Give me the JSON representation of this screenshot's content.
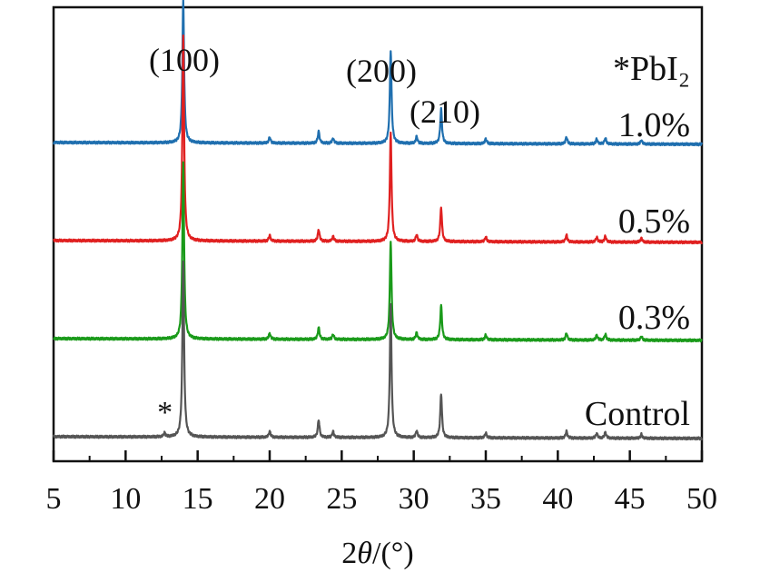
{
  "chart_data": {
    "type": "line",
    "xlabel": "2θ/(°)",
    "xlim": [
      5,
      50
    ],
    "x_ticks": [
      "5",
      "10",
      "15",
      "20",
      "25",
      "30",
      "35",
      "40",
      "45",
      "50"
    ],
    "y_ticks_labeled": false,
    "grid": false,
    "legend_title": "*PbI₂",
    "peak_annotations": [
      {
        "text": "(100)",
        "x": 14.0
      },
      {
        "text": "(200)",
        "x": 28.4
      },
      {
        "text": "(210)",
        "x": 31.9
      }
    ],
    "pbi2_marker": {
      "text": "*",
      "x": 12.7
    },
    "series": [
      {
        "name": "1.0%",
        "color": "#1f6faf",
        "baseline": 3.0,
        "peaks": [
          {
            "x": 14.0,
            "y": 1.45
          },
          {
            "x": 20.0,
            "y": 0.06
          },
          {
            "x": 23.4,
            "y": 0.12
          },
          {
            "x": 24.4,
            "y": 0.05
          },
          {
            "x": 28.4,
            "y": 0.95
          },
          {
            "x": 30.2,
            "y": 0.07
          },
          {
            "x": 31.9,
            "y": 0.35
          },
          {
            "x": 35.0,
            "y": 0.05
          },
          {
            "x": 40.6,
            "y": 0.07
          },
          {
            "x": 42.7,
            "y": 0.05
          },
          {
            "x": 43.3,
            "y": 0.06
          },
          {
            "x": 45.8,
            "y": 0.04
          }
        ]
      },
      {
        "name": "0.5%",
        "color": "#e02020",
        "baseline": 2.0,
        "peaks": [
          {
            "x": 14.0,
            "y": 2.1
          },
          {
            "x": 20.0,
            "y": 0.06
          },
          {
            "x": 23.4,
            "y": 0.12
          },
          {
            "x": 24.4,
            "y": 0.05
          },
          {
            "x": 28.4,
            "y": 1.1
          },
          {
            "x": 30.2,
            "y": 0.07
          },
          {
            "x": 31.9,
            "y": 0.35
          },
          {
            "x": 35.0,
            "y": 0.05
          },
          {
            "x": 40.6,
            "y": 0.07
          },
          {
            "x": 42.7,
            "y": 0.05
          },
          {
            "x": 43.3,
            "y": 0.06
          },
          {
            "x": 45.8,
            "y": 0.04
          }
        ]
      },
      {
        "name": "0.3%",
        "color": "#1a9a1a",
        "baseline": 1.0,
        "peaks": [
          {
            "x": 14.0,
            "y": 1.8
          },
          {
            "x": 20.0,
            "y": 0.06
          },
          {
            "x": 23.4,
            "y": 0.12
          },
          {
            "x": 24.4,
            "y": 0.05
          },
          {
            "x": 28.4,
            "y": 1.0
          },
          {
            "x": 30.2,
            "y": 0.07
          },
          {
            "x": 31.9,
            "y": 0.35
          },
          {
            "x": 35.0,
            "y": 0.05
          },
          {
            "x": 40.6,
            "y": 0.07
          },
          {
            "x": 42.7,
            "y": 0.05
          },
          {
            "x": 43.3,
            "y": 0.06
          },
          {
            "x": 45.8,
            "y": 0.04
          }
        ]
      },
      {
        "name": "Control",
        "color": "#555555",
        "baseline": 0.0,
        "peaks": [
          {
            "x": 12.7,
            "y": 0.04
          },
          {
            "x": 14.0,
            "y": 1.8
          },
          {
            "x": 20.0,
            "y": 0.06
          },
          {
            "x": 23.4,
            "y": 0.18
          },
          {
            "x": 24.4,
            "y": 0.06
          },
          {
            "x": 28.4,
            "y": 1.35
          },
          {
            "x": 30.2,
            "y": 0.07
          },
          {
            "x": 31.9,
            "y": 0.45
          },
          {
            "x": 35.0,
            "y": 0.05
          },
          {
            "x": 40.6,
            "y": 0.07
          },
          {
            "x": 42.7,
            "y": 0.05
          },
          {
            "x": 43.3,
            "y": 0.06
          },
          {
            "x": 45.8,
            "y": 0.04
          }
        ]
      }
    ]
  }
}
